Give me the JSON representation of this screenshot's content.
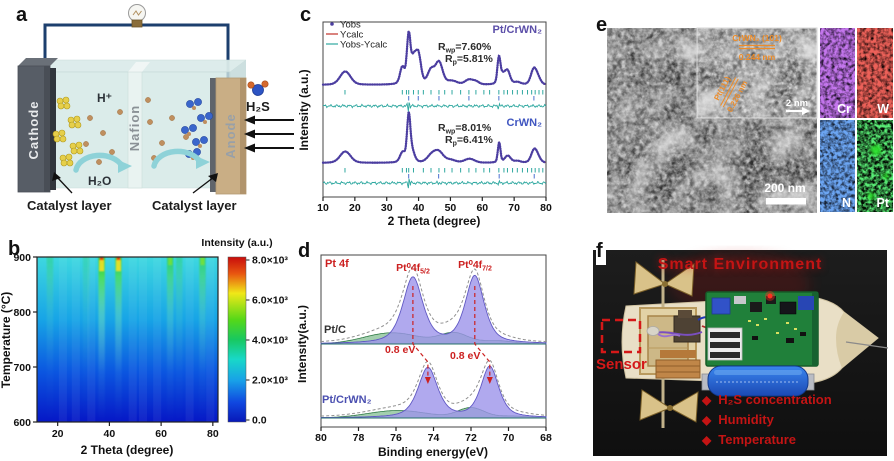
{
  "panels": {
    "a": {
      "label": "a",
      "cathode": "Cathode",
      "anode": "Anode",
      "nafion": "Nafion",
      "h_plus": "H⁺",
      "h2o": "H₂O",
      "h2s": "H₂S",
      "catalyst_left": "Catalyst layer",
      "catalyst_right": "Catalyst layer"
    },
    "b": {
      "label": "b",
      "xlabel": "2 Theta (degree)",
      "ylabel": "Temperature (°C)",
      "colorbar_title": "Intensity (a.u.)",
      "colorbar_ticks": [
        "8.0×10³",
        "6.0×10³",
        "4.0×10³",
        "2.0×10³",
        "0.0"
      ],
      "x_ticks": [
        20,
        40,
        60,
        80
      ],
      "y_ticks": [
        900,
        800,
        700,
        600
      ]
    },
    "c": {
      "label": "c",
      "xlabel": "2 Theta (degree)",
      "ylabel": "Intensity (a.u.)",
      "x_ticks": [
        10,
        20,
        30,
        40,
        50,
        60,
        70,
        80
      ],
      "legend": {
        "obs": "Yobs",
        "calc": "Ycalc",
        "diff": "Yobs-Ycalc"
      },
      "top_label": "Pt/CrWN₂",
      "bottom_label": "CrWN₂",
      "stats_top": {
        "rwp": [
          "R",
          "wp",
          "=7.60%"
        ],
        "rp": [
          "R",
          "p",
          "=5.81%"
        ]
      },
      "stats_bottom": {
        "rwp": [
          "R",
          "wp",
          "=8.01%"
        ],
        "rp": [
          "R",
          "p",
          "=6.41%"
        ]
      }
    },
    "d": {
      "label": "d",
      "corner": "Pt 4f",
      "xlabel": "Binding energy(eV)",
      "ylabel": "Intensity(a.u.)",
      "x_ticks": [
        80,
        78,
        76,
        74,
        72,
        70,
        68
      ],
      "top_series": "Pt/C",
      "bottom_series": "Pt/CrWN₂",
      "peak_label_1": [
        "Pt⁰4f",
        "5/2"
      ],
      "peak_label_2": [
        "Pt⁰4f",
        "7/2"
      ],
      "shift_label_1": "0.8 eV",
      "shift_label_2": "0.8 eV"
    },
    "e": {
      "label": "e",
      "inset": {
        "phase1": "CrWN₂ (101)",
        "d1": "0.244 nm",
        "phase2": "Pt(111)",
        "d2": "0.226 nm",
        "scale": "2 nm"
      },
      "scale": "200 nm",
      "maps": [
        {
          "element": "Cr"
        },
        {
          "element": "W"
        },
        {
          "element": "N"
        },
        {
          "element": "Pt"
        }
      ]
    },
    "f": {
      "label": "f",
      "title": "Smart Environment",
      "sensor_label": "Sensor",
      "bullet_icon": "◆",
      "bullets": [
        "H₂S concentration",
        "Humidity",
        "Temperature"
      ]
    }
  },
  "chart_data": [
    {
      "type": "heatmap",
      "panel": "b",
      "xlabel": "2 Theta (degree)",
      "ylabel": "Temperature (°C)",
      "x_range": [
        12,
        82
      ],
      "y_range": [
        600,
        900
      ],
      "colorbar_title": "Intensity (a.u.)",
      "colorbar_range": [
        0,
        8000
      ],
      "colorbar_ticks": [
        8000,
        6000,
        4000,
        2000,
        0
      ],
      "gradient_low_to_high": [
        "#0617c6",
        "#0b55e0",
        "#17a4e6",
        "#3ed8e0"
      ],
      "diffraction_streaks": [
        {
          "two_theta": 17,
          "rel_intensity": 0.28
        },
        {
          "two_theta": 31,
          "rel_intensity": 0.2
        },
        {
          "two_theta": 37,
          "rel_intensity": 1.0
        },
        {
          "two_theta": 43.5,
          "rel_intensity": 0.85
        },
        {
          "two_theta": 63.5,
          "rel_intensity": 0.6
        },
        {
          "two_theta": 67,
          "rel_intensity": 0.3
        },
        {
          "two_theta": 76,
          "rel_intensity": 0.55
        }
      ]
    },
    {
      "type": "line",
      "panel": "c",
      "xlabel": "2 Theta (degree)",
      "ylabel": "Intensity (a.u.)",
      "x_range": [
        10,
        80
      ],
      "series": [
        {
          "name": "Pt/CrWN₂",
          "Rwp": "7.60%",
          "Rp": "5.81%",
          "peaks": [
            [
              17,
              0.28,
              1.6
            ],
            [
              34.9,
              0.34,
              0.7
            ],
            [
              36.9,
              1.0,
              0.55
            ],
            [
              38.4,
              0.45,
              0.7
            ],
            [
              39.9,
              0.62,
              0.8
            ],
            [
              43.9,
              0.28,
              1.0
            ],
            [
              46.4,
              0.46,
              1.1
            ],
            [
              50.5,
              0.07,
              1.5
            ],
            [
              55.8,
              0.1,
              1.2
            ],
            [
              58,
              0.06,
              1.0
            ],
            [
              65.2,
              0.5,
              0.45
            ],
            [
              66.2,
              0.18,
              0.8
            ],
            [
              67.9,
              0.28,
              0.8
            ],
            [
              71,
              0.05,
              1.0
            ],
            [
              76.2,
              0.33,
              0.9
            ],
            [
              77.6,
              0.1,
              0.8
            ]
          ],
          "bragg_row1": [
            16.9,
            34.9,
            36.2,
            36.9,
            38.4,
            39.9,
            41.5,
            43.9,
            46.4,
            48.2,
            50.5,
            53.2,
            55.8,
            58,
            60.5,
            62.3,
            65.2,
            66.8,
            67.9,
            69.5,
            71,
            72.6,
            74.2,
            75.5,
            76.6,
            77.8,
            79
          ],
          "bragg_row2": [
            36.9,
            39.9,
            46.4,
            55.8,
            65.2,
            76.2
          ]
        },
        {
          "name": "CrWN₂",
          "Rwp": "8.01%",
          "Rp": "6.41%",
          "peaks": [
            [
              17,
              0.26,
              1.6
            ],
            [
              35,
              0.22,
              0.8
            ],
            [
              36.9,
              1.0,
              0.5
            ],
            [
              37.9,
              0.25,
              0.8
            ],
            [
              44,
              0.15,
              1.3
            ],
            [
              46.3,
              0.24,
              1.4
            ],
            [
              50,
              0.06,
              1.5
            ],
            [
              56,
              0.09,
              1.5
            ],
            [
              65.3,
              0.46,
              0.4
            ],
            [
              68,
              0.16,
              0.9
            ],
            [
              71,
              0.04,
              1.0
            ],
            [
              76.3,
              0.3,
              0.9
            ],
            [
              77.6,
              0.08,
              0.8
            ]
          ],
          "bragg_row1": [
            16.9,
            34.9,
            36.2,
            36.9,
            38.4,
            41.5,
            43.9,
            46.4,
            48.2,
            50.5,
            53.2,
            55.8,
            58,
            60.5,
            62.3,
            65.2,
            66.8,
            67.9,
            69.5,
            71,
            72.6,
            74.2,
            75.5,
            76.6,
            77.8,
            79
          ],
          "bragg_row2": [
            36.9,
            46.3,
            65.3,
            76.3
          ]
        }
      ]
    },
    {
      "type": "line",
      "panel": "d",
      "xlabel": "Binding energy(eV)",
      "ylabel": "Intensity(a.u.)",
      "x_range": [
        80,
        68
      ],
      "peak_shift_eV": 0.8,
      "series": [
        {
          "name": "Pt/C",
          "pt0_4f52_eV": 75.1,
          "pt0_4f72_eV": 71.8,
          "pt_components": [
            [
              75.1,
              1.0,
              0.62
            ],
            [
              71.8,
              1.02,
              0.58
            ]
          ],
          "oxide_components": [
            [
              76.2,
              0.17,
              1.5
            ],
            [
              72.9,
              0.16,
              0.75
            ],
            [
              70.6,
              0.05,
              0.9
            ]
          ]
        },
        {
          "name": "Pt/CrWN₂",
          "pt0_4f52_eV": 74.3,
          "pt0_4f72_eV": 71.0,
          "pt_components": [
            [
              74.3,
              1.0,
              0.6
            ],
            [
              71.0,
              1.02,
              0.55
            ]
          ],
          "oxide_components": [
            [
              75.9,
              0.15,
              1.6
            ],
            [
              72.0,
              0.2,
              0.7
            ],
            [
              69.8,
              0.04,
              0.9
            ]
          ]
        }
      ]
    }
  ]
}
